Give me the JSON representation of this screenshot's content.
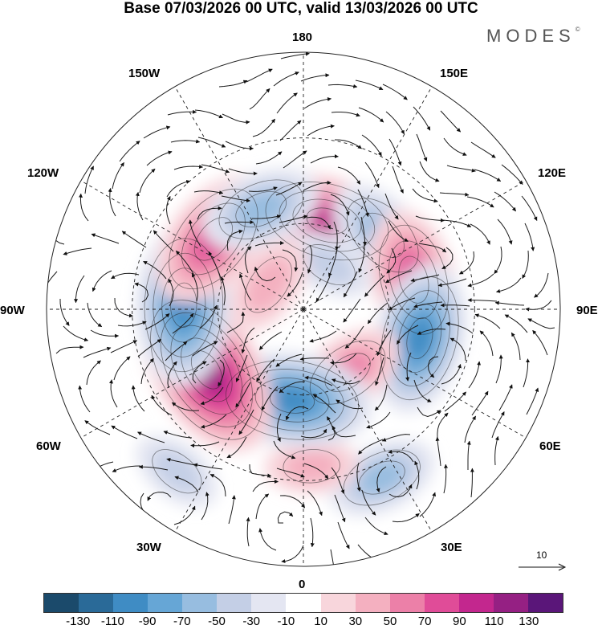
{
  "title": "Base 07/03/2026 00 UTC, valid 13/03/2026 00 UTC",
  "brand": "MODES",
  "brand_mark": "©",
  "lon_labels": {
    "n180": "180",
    "n150e": "150E",
    "n120e": "120E",
    "n90e": "90E",
    "n60e": "60E",
    "n30e": "30E",
    "n0": "0",
    "n30w": "30W",
    "n60w": "60W",
    "n90w": "90W",
    "n120w": "120W",
    "n150w": "150W"
  },
  "ref_vector_label": "10",
  "colorbar": {
    "colors": [
      "#1b4a6b",
      "#2a6a98",
      "#3f8cc4",
      "#66a6d6",
      "#97bde0",
      "#c4cfe6",
      "#e4e6f2",
      "#ffffff",
      "#f8d6dc",
      "#f4b0c0",
      "#ec80a8",
      "#e04c98",
      "#c3278e",
      "#952083",
      "#5a1679"
    ],
    "ticks": [
      "-130",
      "-110",
      "-90",
      "-70",
      "-50",
      "-30",
      "-10",
      "10",
      "30",
      "50",
      "70",
      "90",
      "110",
      "130"
    ]
  },
  "anomalies": [
    {
      "name": "pos-pacific-center",
      "lon": 165,
      "lat": 58,
      "value": 90
    },
    {
      "name": "neg-east-siberia",
      "lon": 133,
      "lat": 52,
      "value": -60
    },
    {
      "name": "pos-east-russia",
      "lon": 105,
      "lat": 50,
      "value": 80
    },
    {
      "name": "neg-central-asia",
      "lon": 76,
      "lat": 48,
      "value": -90
    },
    {
      "name": "neg-small-east",
      "lon": 150,
      "lat": 72,
      "value": -30
    },
    {
      "name": "pos-europe",
      "lon": 35,
      "lat": 63,
      "value": 55
    },
    {
      "name": "neg-mediterranean",
      "lon": 25,
      "lat": 25,
      "value": -50
    },
    {
      "name": "pos-north-atlantic",
      "lon": 3,
      "lat": 35,
      "value": 30
    },
    {
      "name": "neg-greenland-sea",
      "lon": -7,
      "lat": 58,
      "value": -100
    },
    {
      "name": "pos-canada",
      "lon": -58,
      "lat": 50,
      "value": 120
    },
    {
      "name": "neg-hudson",
      "lon": -92,
      "lat": 48,
      "value": -100
    },
    {
      "name": "pos-alaska",
      "lon": -128,
      "lat": 50,
      "value": 85
    },
    {
      "name": "neg-north-pacific",
      "lon": -157,
      "lat": 52,
      "value": -60
    },
    {
      "name": "pos-beaufort",
      "lon": -125,
      "lat": 75,
      "value": 40
    },
    {
      "name": "neg-subtropic-atlantic",
      "lon": -38,
      "lat": 18,
      "value": -30
    }
  ]
}
